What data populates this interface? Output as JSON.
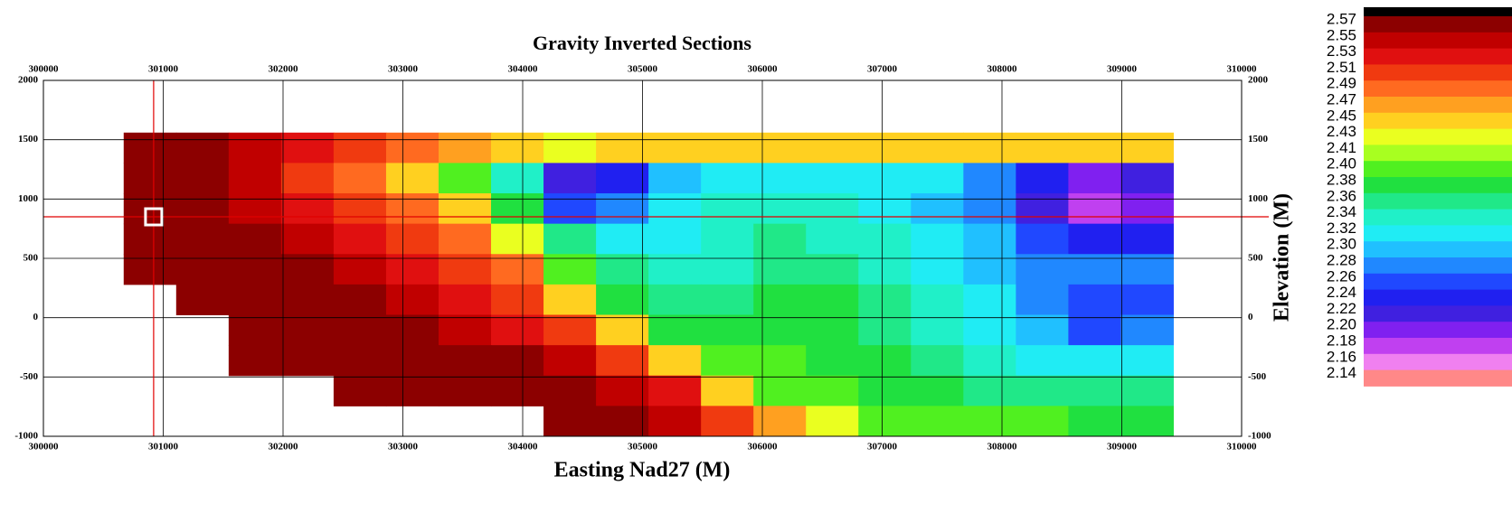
{
  "chart_data": {
    "type": "heatmap",
    "title": "Gravity Inverted Sections",
    "x_label": "Easting Nad27 (M)",
    "y_label": "Elevation (M)",
    "xlim": [
      300000,
      310000
    ],
    "ylim": [
      -1000,
      2000
    ],
    "xticks": [
      300000,
      301000,
      302000,
      303000,
      304000,
      305000,
      306000,
      307000,
      308000,
      309000,
      310000
    ],
    "yticks": [
      -1000,
      -500,
      0,
      500,
      1000,
      1500,
      2000
    ],
    "grid": true,
    "grid_color": "#000000",
    "crosshair": {
      "x": 300920,
      "y": 850,
      "color": "#e00000"
    },
    "x": [
      300670,
      301108,
      301546,
      301984,
      302422,
      302860,
      303298,
      303736,
      304174,
      304612,
      305050,
      305488,
      305926,
      306364,
      306802,
      307240,
      307678,
      308116,
      308554,
      308992,
      309430
    ],
    "y": [
      1560,
      1304,
      1048,
      792,
      536,
      280,
      24,
      -232,
      -488,
      -744,
      -1000
    ],
    "values": [
      [
        2.57,
        2.57,
        2.55,
        2.53,
        2.51,
        2.49,
        2.47,
        2.45,
        2.43,
        2.45,
        2.45,
        2.45,
        2.45,
        2.45,
        2.45,
        2.45,
        2.45,
        2.45,
        2.45,
        2.45
      ],
      [
        2.57,
        2.57,
        2.55,
        2.51,
        2.49,
        2.45,
        2.4,
        2.34,
        2.22,
        2.24,
        2.3,
        2.32,
        2.32,
        2.32,
        2.32,
        2.32,
        2.28,
        2.24,
        2.2,
        2.22
      ],
      [
        2.57,
        2.57,
        2.55,
        2.53,
        2.51,
        2.49,
        2.45,
        2.38,
        2.26,
        2.28,
        2.32,
        2.34,
        2.34,
        2.34,
        2.32,
        2.3,
        2.28,
        2.22,
        2.18,
        2.2
      ],
      [
        2.57,
        2.57,
        2.57,
        2.55,
        2.53,
        2.51,
        2.49,
        2.43,
        2.36,
        2.32,
        2.32,
        2.34,
        2.36,
        2.34,
        2.34,
        2.32,
        2.3,
        2.26,
        2.24,
        2.24
      ],
      [
        2.57,
        2.57,
        2.57,
        2.57,
        2.55,
        2.53,
        2.51,
        2.49,
        2.4,
        2.36,
        2.34,
        2.34,
        2.36,
        2.36,
        2.34,
        2.32,
        2.3,
        2.28,
        2.28,
        2.28
      ],
      [
        null,
        2.57,
        2.57,
        2.57,
        2.57,
        2.55,
        2.53,
        2.51,
        2.45,
        2.38,
        2.36,
        2.36,
        2.38,
        2.38,
        2.36,
        2.34,
        2.32,
        2.28,
        2.26,
        2.26
      ],
      [
        null,
        null,
        2.57,
        2.57,
        2.57,
        2.57,
        2.55,
        2.53,
        2.51,
        2.45,
        2.38,
        2.38,
        2.38,
        2.38,
        2.36,
        2.34,
        2.32,
        2.3,
        2.26,
        2.28
      ],
      [
        null,
        null,
        2.57,
        2.57,
        2.57,
        2.57,
        2.57,
        2.57,
        2.55,
        2.51,
        2.45,
        2.4,
        2.4,
        2.38,
        2.38,
        2.36,
        2.34,
        2.32,
        2.32,
        2.32
      ],
      [
        null,
        null,
        null,
        null,
        2.57,
        2.57,
        2.57,
        2.57,
        2.57,
        2.55,
        2.53,
        2.45,
        2.4,
        2.4,
        2.38,
        2.38,
        2.36,
        2.36,
        2.36,
        2.36
      ],
      [
        null,
        null,
        null,
        null,
        null,
        null,
        null,
        null,
        2.57,
        2.57,
        2.55,
        2.51,
        2.47,
        2.43,
        2.4,
        2.4,
        2.4,
        2.4,
        2.38,
        2.38
      ]
    ],
    "colorbar": {
      "over_color": "#000000",
      "ticks": [
        2.57,
        2.55,
        2.53,
        2.51,
        2.49,
        2.47,
        2.45,
        2.43,
        2.41,
        {
          "value": 2.4,
          "label": "2.40"
        },
        2.38,
        2.36,
        2.34,
        2.32,
        {
          "value": 2.3,
          "label": "2.30"
        },
        2.28,
        2.26,
        2.24,
        2.22,
        {
          "value": 2.2,
          "label": "2.20"
        },
        2.18,
        2.16,
        2.14
      ],
      "colors": [
        "#8c0000",
        "#c00000",
        "#e01010",
        "#f03a10",
        "#ff6a20",
        "#ffa020",
        "#ffd020",
        "#eaff20",
        "#a8ff20",
        "#50f020",
        "#20e040",
        "#20e888",
        "#20f0c8",
        "#20ecf4",
        "#20c0ff",
        "#2088ff",
        "#2048ff",
        "#2020f0",
        "#4020e0",
        "#8020f0",
        "#c040f0",
        "#f080f0",
        "#ff8888"
      ]
    }
  }
}
